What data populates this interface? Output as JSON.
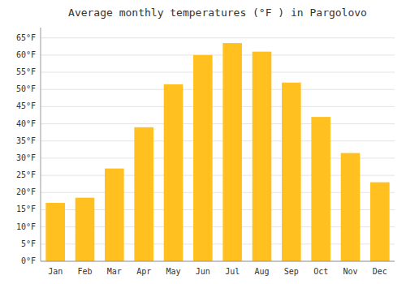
{
  "chart_data": {
    "type": "bar",
    "title": "Average monthly temperatures (°F ) in Pargolovo",
    "categories": [
      "Jan",
      "Feb",
      "Mar",
      "Apr",
      "May",
      "Jun",
      "Jul",
      "Aug",
      "Sep",
      "Oct",
      "Nov",
      "Dec"
    ],
    "values": [
      17,
      18.5,
      27,
      39,
      51.5,
      60,
      63.5,
      61,
      52,
      42,
      31.5,
      23
    ],
    "color": "#FFC020",
    "ylim": [
      0,
      68
    ],
    "yticks": [
      {
        "value": 0,
        "label": "0°F"
      },
      {
        "value": 5,
        "label": "5°F"
      },
      {
        "value": 10,
        "label": "10°F"
      },
      {
        "value": 15,
        "label": "15°F"
      },
      {
        "value": 20,
        "label": "20°F"
      },
      {
        "value": 25,
        "label": "25°F"
      },
      {
        "value": 30,
        "label": "30°F"
      },
      {
        "value": 35,
        "label": "35°F"
      },
      {
        "value": 40,
        "label": "40°F"
      },
      {
        "value": 45,
        "label": "45°F"
      },
      {
        "value": 50,
        "label": "50°F"
      },
      {
        "value": 55,
        "label": "55°F"
      },
      {
        "value": 60,
        "label": "60°F"
      },
      {
        "value": 65,
        "label": "65°F"
      }
    ],
    "grid": true
  }
}
